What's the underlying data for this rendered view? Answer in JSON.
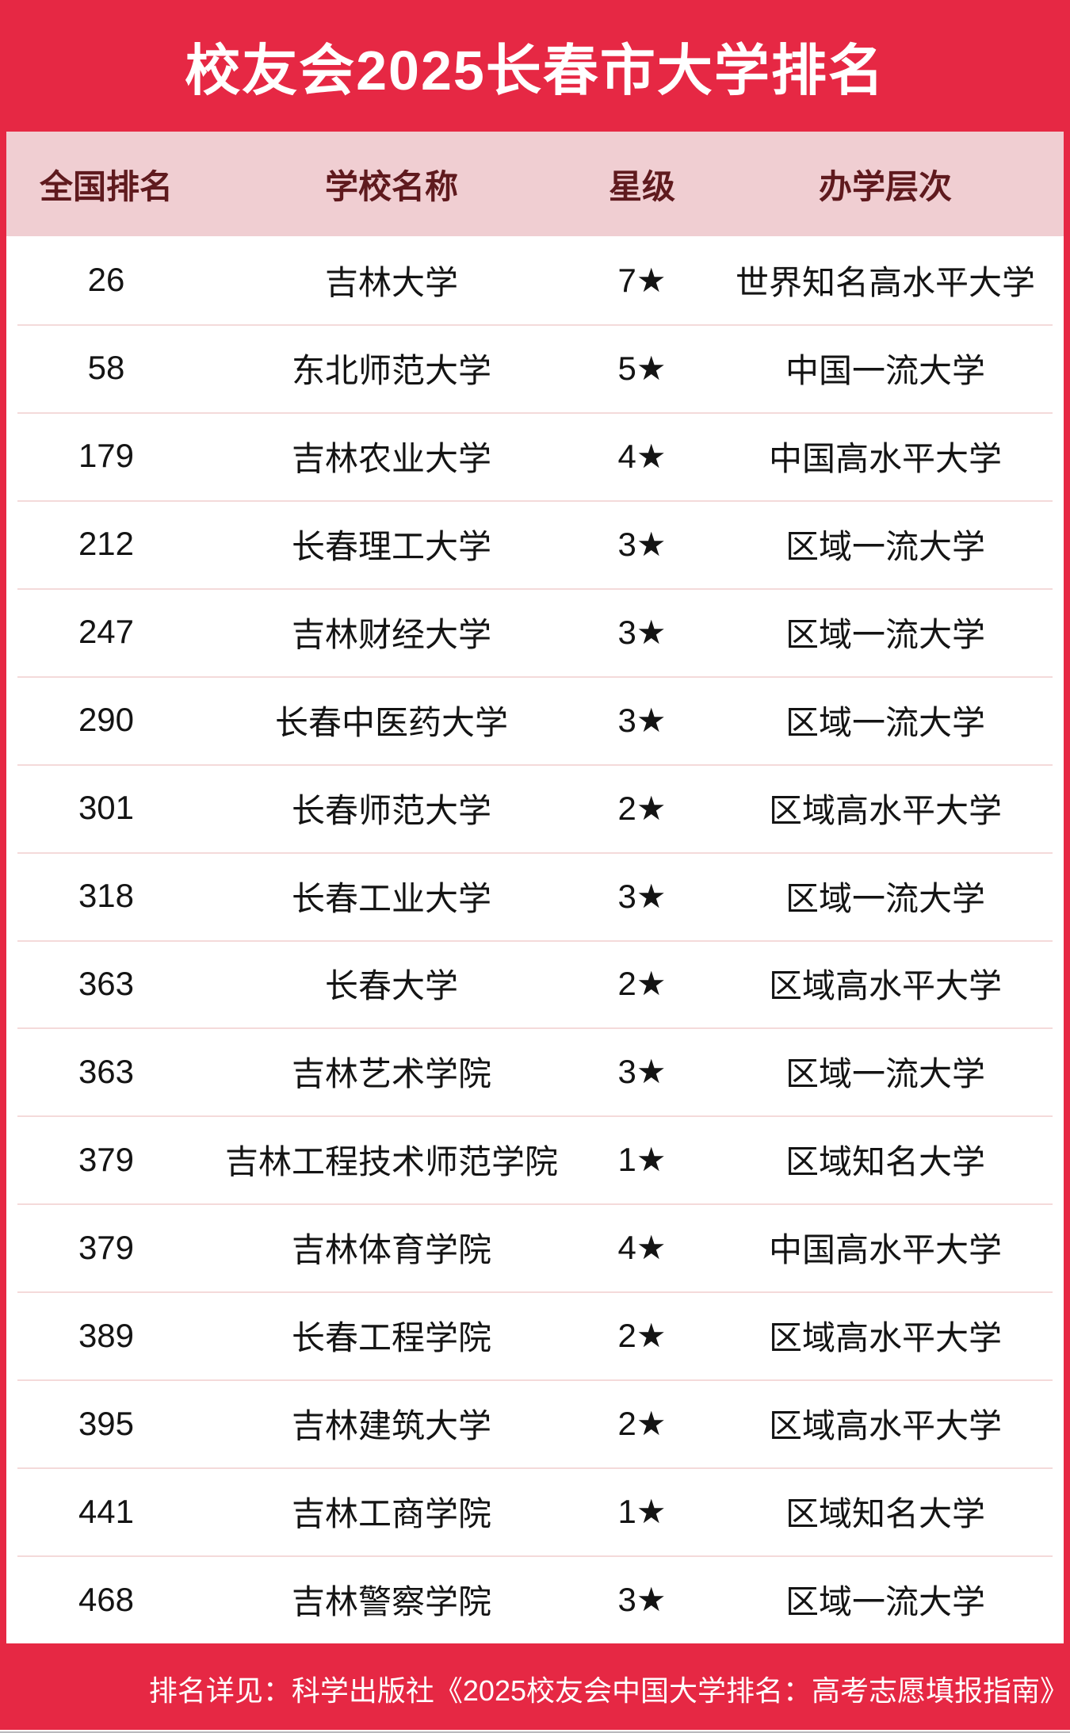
{
  "title": "校友会2025长春市大学排名",
  "chart_data": {
    "type": "table",
    "title": "校友会2025长春市大学排名",
    "columns": [
      "全国排名",
      "学校名称",
      "星级",
      "办学层次"
    ],
    "rows": [
      [
        "26",
        "吉林大学",
        "7★",
        "世界知名高水平大学"
      ],
      [
        "58",
        "东北师范大学",
        "5★",
        "中国一流大学"
      ],
      [
        "179",
        "吉林农业大学",
        "4★",
        "中国高水平大学"
      ],
      [
        "212",
        "长春理工大学",
        "3★",
        "区域一流大学"
      ],
      [
        "247",
        "吉林财经大学",
        "3★",
        "区域一流大学"
      ],
      [
        "290",
        "长春中医药大学",
        "3★",
        "区域一流大学"
      ],
      [
        "301",
        "长春师范大学",
        "2★",
        "区域高水平大学"
      ],
      [
        "318",
        "长春工业大学",
        "3★",
        "区域一流大学"
      ],
      [
        "363",
        "长春大学",
        "2★",
        "区域高水平大学"
      ],
      [
        "363",
        "吉林艺术学院",
        "3★",
        "区域一流大学"
      ],
      [
        "379",
        "吉林工程技术师范学院",
        "1★",
        "区域知名大学"
      ],
      [
        "379",
        "吉林体育学院",
        "4★",
        "中国高水平大学"
      ],
      [
        "389",
        "长春工程学院",
        "2★",
        "区域高水平大学"
      ],
      [
        "395",
        "吉林建筑大学",
        "2★",
        "区域高水平大学"
      ],
      [
        "441",
        "吉林工商学院",
        "1★",
        "区域知名大学"
      ],
      [
        "468",
        "吉林警察学院",
        "3★",
        "区域一流大学"
      ]
    ],
    "footnote": "排名详见：科学出版社《2025校友会中国大学排名：高考志愿填报指南》"
  },
  "footer": {
    "note": "排名详见：科学出版社《2025校友会中国大学排名：高考志愿填报指南》"
  },
  "colors": {
    "background_red": "#e62844",
    "header_pink": "#f0ced2",
    "header_text_maroon": "#5f1a1e",
    "body_text": "#141414",
    "row_divider": "#f4dada",
    "title_text": "#ffffff",
    "footer_text": "#ffffff"
  }
}
